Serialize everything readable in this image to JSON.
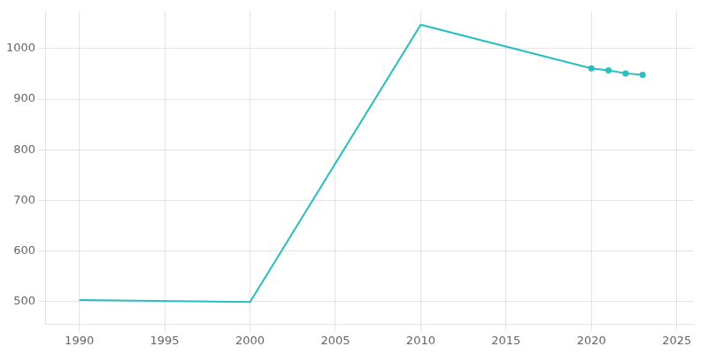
{
  "chart_data": {
    "type": "line",
    "series": [
      {
        "type": "line",
        "color": "#2abfbf",
        "line_style": "solid",
        "x": [
          1990,
          2000,
          2010,
          2020,
          2021,
          2022,
          2023
        ],
        "values": [
          503,
          499,
          1047,
          961,
          957,
          951,
          948
        ]
      },
      {
        "type": "scatter",
        "color": "#2abfbf",
        "marker": "circle",
        "x": [
          2020,
          2021,
          2022,
          2023
        ],
        "values": [
          961,
          957,
          951,
          948
        ]
      }
    ],
    "xlim": [
      1988,
      2026
    ],
    "ylim": [
      455,
      1075
    ],
    "xticks": [
      1990,
      1995,
      2000,
      2005,
      2010,
      2015,
      2020,
      2025
    ],
    "yticks": [
      500,
      600,
      700,
      800,
      900,
      1000
    ],
    "grid": true
  }
}
